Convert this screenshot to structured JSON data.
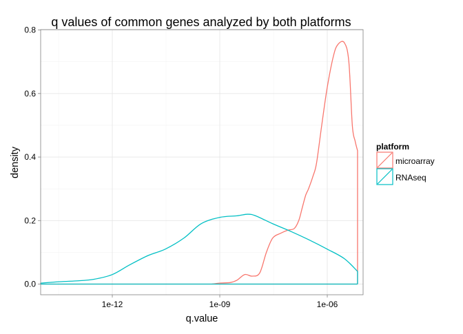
{
  "chart_data": {
    "type": "area",
    "title": "q values of common genes analyzed by both platforms",
    "xlabel": "q.value",
    "ylabel": "density",
    "x_scale": "log10",
    "xlim": [
      1e-14,
      1e-05
    ],
    "ylim": [
      0,
      0.8
    ],
    "x_ticks": [
      1e-12,
      1e-09,
      1e-06
    ],
    "x_tick_labels": [
      "1e-12",
      "1e-09",
      "1e-06"
    ],
    "y_ticks": [
      0,
      0.2,
      0.4,
      0.6,
      0.8
    ],
    "y_tick_labels": [
      "0.0",
      "0.2",
      "0.4",
      "0.6",
      "0.8"
    ],
    "grid": true,
    "legend": {
      "title": "platform",
      "position": "right"
    },
    "series": [
      {
        "name": "microarray",
        "color": "#F8766D",
        "x": [
          6e-10,
          1e-09,
          2e-09,
          3e-09,
          5e-09,
          8e-09,
          1.3e-08,
          2e-08,
          3e-08,
          5e-08,
          8e-08,
          1.2e-07,
          1.6e-07,
          2e-07,
          2.5e-07,
          3e-07,
          4e-07,
          5e-07,
          7e-07,
          1e-06,
          1.5e-06,
          2e-06,
          3e-06,
          4e-06,
          5e-06,
          6e-06,
          7e-06
        ],
        "y": [
          0.0,
          0.003,
          0.005,
          0.012,
          0.03,
          0.025,
          0.035,
          0.1,
          0.145,
          0.16,
          0.17,
          0.175,
          0.2,
          0.24,
          0.28,
          0.3,
          0.34,
          0.38,
          0.5,
          0.62,
          0.72,
          0.755,
          0.76,
          0.7,
          0.5,
          0.45,
          0.42
        ],
        "baseline_x_range": [
          1e-14,
          7e-06
        ]
      },
      {
        "name": "RNAseq",
        "color": "#00BFC4",
        "x": [
          1e-14,
          3e-14,
          1e-13,
          3e-13,
          1e-12,
          3e-12,
          1e-11,
          3e-11,
          1e-10,
          3e-10,
          1e-09,
          3e-09,
          6e-09,
          1e-08,
          3e-08,
          1e-07,
          3e-07,
          1e-06,
          3e-06,
          7e-06
        ],
        "y": [
          0.003,
          0.007,
          0.01,
          0.015,
          0.03,
          0.06,
          0.09,
          0.11,
          0.145,
          0.19,
          0.21,
          0.215,
          0.22,
          0.215,
          0.19,
          0.165,
          0.14,
          0.11,
          0.08,
          0.04
        ],
        "baseline_x_range": [
          1e-14,
          7e-06
        ]
      }
    ]
  }
}
